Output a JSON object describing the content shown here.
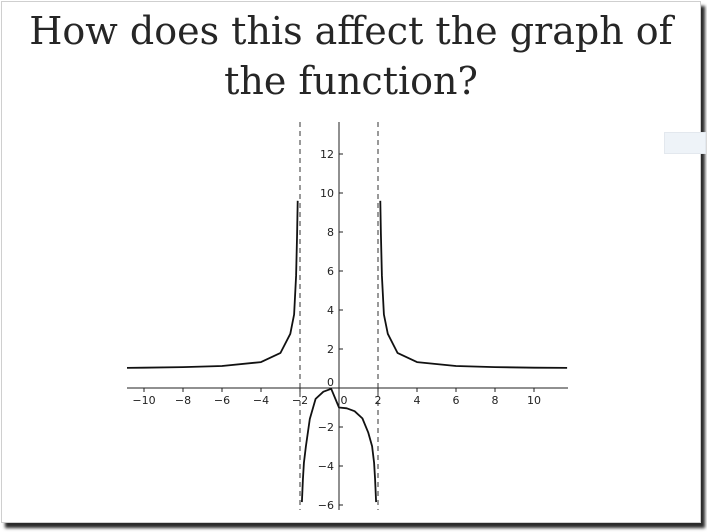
{
  "slide": {
    "title_line1": "How does this affect the graph of",
    "title_line2": "the function?"
  },
  "chart_data": {
    "type": "line",
    "title": "How does this affect the graph of the function?",
    "xlabel": "",
    "ylabel": "",
    "xlim": [
      -11.2,
      11.7
    ],
    "ylim": [
      -6.3,
      13.5
    ],
    "x_ticks": [
      -10,
      -8,
      -6,
      -4,
      -2,
      0,
      2,
      4,
      6,
      8,
      10
    ],
    "y_ticks_pos": [
      2,
      4,
      6,
      8,
      10,
      12
    ],
    "y_ticks_neg": [
      -2,
      -4,
      -6
    ],
    "y_zero_label": "0",
    "vertical_asymptotes": [
      -2,
      2
    ],
    "horizontal_asymptote": 1,
    "grid": false,
    "legend": "none",
    "line_color": "#111111",
    "series": [
      {
        "branches": [
          {
            "x": [
              -11.2,
              -10,
              -8,
              -6,
              -4,
              -3,
              -2.5,
              -2.3,
              -2.2,
              -2.15,
              -2.12
            ],
            "y": [
              1.03,
              1.04,
              1.07,
              1.13,
              1.33,
              1.8,
              2.78,
              3.77,
              5.76,
              7.9,
              9.6
            ]
          },
          {
            "x": [
              -1.9,
              -1.85,
              -1.8,
              -1.7,
              -1.5,
              -1.2,
              -0.8,
              -0.4,
              0,
              0.4,
              0.8,
              1.2,
              1.5,
              1.7,
              1.8,
              1.85,
              1.9
            ],
            "y": [
              -5.85,
              -4.7,
              -3.84,
              -2.99,
              -1.59,
              -0.56,
              -0.19,
              -0.04,
              -1,
              -1.04,
              -1.19,
              -1.56,
              -2.29,
              -2.99,
              -3.84,
              -4.7,
              -5.85
            ]
          },
          {
            "x": [
              2.12,
              2.15,
              2.2,
              2.3,
              2.5,
              3,
              4,
              6,
              8,
              10,
              11.7
            ],
            "y": [
              9.6,
              7.9,
              5.76,
              3.77,
              2.78,
              1.8,
              1.33,
              1.13,
              1.07,
              1.04,
              1.03
            ]
          }
        ]
      }
    ]
  }
}
